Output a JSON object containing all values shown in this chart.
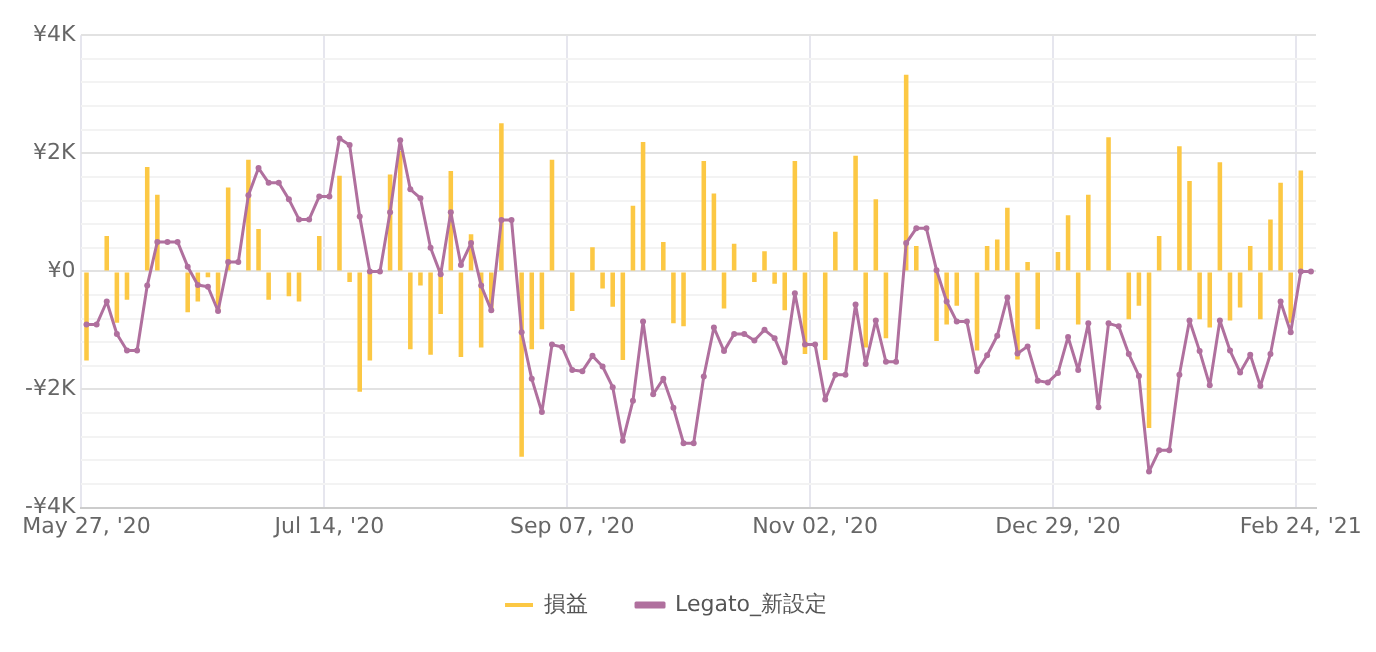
{
  "chart_data": {
    "type": "bar",
    "categories": [
      "May 27, '20",
      null,
      null,
      null,
      null,
      null,
      null,
      null,
      null,
      null,
      null,
      null,
      null,
      null,
      null,
      null,
      null,
      null,
      null,
      null,
      null,
      null,
      null,
      null,
      "Jul 14, '20",
      null,
      null,
      null,
      null,
      null,
      null,
      null,
      null,
      null,
      null,
      null,
      null,
      null,
      null,
      null,
      null,
      null,
      null,
      null,
      null,
      null,
      null,
      null,
      "Sep 07, '20",
      null,
      null,
      null,
      null,
      null,
      null,
      null,
      null,
      null,
      null,
      null,
      null,
      null,
      null,
      null,
      null,
      null,
      null,
      null,
      null,
      null,
      null,
      null,
      "Nov 02, '20",
      null,
      null,
      null,
      null,
      null,
      null,
      null,
      null,
      null,
      null,
      null,
      null,
      null,
      null,
      null,
      null,
      null,
      null,
      null,
      null,
      null,
      null,
      null,
      "Dec 29, '20",
      null,
      null,
      null,
      null,
      null,
      null,
      null,
      null,
      null,
      null,
      null,
      null,
      null,
      null,
      null,
      null,
      null,
      null,
      null,
      null,
      null,
      null,
      null,
      "Feb 24, '21",
      null
    ],
    "series": [
      {
        "name": "損益",
        "color": "#fcc844",
        "values": [
          -1510,
          null,
          600,
          -870,
          -480,
          null,
          1770,
          1300,
          null,
          null,
          -690,
          -510,
          -100,
          -690,
          1420,
          null,
          1890,
          720,
          -480,
          null,
          -420,
          -510,
          null,
          600,
          null,
          1620,
          -180,
          -2040,
          -1510,
          null,
          1640,
          2040,
          -1320,
          -240,
          -1410,
          -720,
          1700,
          -1450,
          630,
          -1290,
          -690,
          2510,
          null,
          -3140,
          -1320,
          -980,
          1890,
          null,
          -670,
          null,
          410,
          -290,
          -600,
          -1500,
          1110,
          2190,
          null,
          500,
          -880,
          -930,
          null,
          1870,
          1320,
          -630,
          470,
          null,
          -180,
          340,
          -210,
          -660,
          1870,
          -1400,
          null,
          -1500,
          670,
          null,
          1960,
          -1290,
          1220,
          -1130,
          null,
          3330,
          430,
          null,
          -1180,
          -900,
          -580,
          null,
          -1340,
          430,
          540,
          1080,
          -1490,
          160,
          -980,
          null,
          330,
          950,
          -900,
          1300,
          null,
          2270,
          null,
          -810,
          -580,
          -2650,
          600,
          null,
          2120,
          1530,
          -810,
          -950,
          1850,
          -830,
          -610,
          430,
          -810,
          880,
          1500,
          -870,
          1710,
          null
        ]
      },
      {
        "name": "Legato_新設定",
        "type": "line",
        "color": "#b0709e",
        "values": [
          -900,
          -900,
          -510,
          -1060,
          -1340,
          -1340,
          -240,
          500,
          500,
          500,
          80,
          -230,
          -260,
          -670,
          160,
          160,
          1290,
          1750,
          1500,
          1500,
          1220,
          880,
          880,
          1270,
          1270,
          2250,
          2140,
          930,
          0,
          0,
          1000,
          2220,
          1390,
          1240,
          400,
          -50,
          1000,
          110,
          480,
          -240,
          -660,
          870,
          870,
          -1030,
          -1820,
          -2380,
          -1240,
          -1280,
          -1670,
          -1690,
          -1430,
          -1610,
          -1960,
          -2870,
          -2190,
          -850,
          -2080,
          -1820,
          -2310,
          -2910,
          -2910,
          -1780,
          -950,
          -1350,
          -1060,
          -1060,
          -1170,
          -990,
          -1130,
          -1540,
          -370,
          -1240,
          -1240,
          -2170,
          -1750,
          -1750,
          -560,
          -1570,
          -830,
          -1530,
          -1530,
          480,
          730,
          730,
          20,
          -510,
          -850,
          -850,
          -1690,
          -1420,
          -1090,
          -440,
          -1390,
          -1270,
          -1850,
          -1880,
          -1720,
          -1110,
          -1670,
          -880,
          -2300,
          -880,
          -930,
          -1400,
          -1770,
          -3390,
          -3030,
          -3030,
          -1750,
          -830,
          -1350,
          -1930,
          -830,
          -1340,
          -1710,
          -1410,
          -1940,
          -1400,
          -510,
          -1030,
          0,
          0
        ]
      }
    ],
    "ylim": [
      -4000,
      4000
    ],
    "yticks": [
      {
        "value": -4000,
        "label": "-¥4K"
      },
      {
        "value": -3600,
        "label": null
      },
      {
        "value": -3200,
        "label": null
      },
      {
        "value": -2800,
        "label": null
      },
      {
        "value": -2400,
        "label": null
      },
      {
        "value": -2000,
        "label": "-¥2K"
      },
      {
        "value": -1600,
        "label": null
      },
      {
        "value": -1200,
        "label": null
      },
      {
        "value": -800,
        "label": null
      },
      {
        "value": -400,
        "label": null
      },
      {
        "value": 0,
        "label": "¥0"
      },
      {
        "value": 400,
        "label": null
      },
      {
        "value": 800,
        "label": null
      },
      {
        "value": 1200,
        "label": null
      },
      {
        "value": 1600,
        "label": null
      },
      {
        "value": 2000,
        "label": "¥2K"
      },
      {
        "value": 2400,
        "label": null
      },
      {
        "value": 2800,
        "label": null
      },
      {
        "value": 3200,
        "label": null
      },
      {
        "value": 3600,
        "label": null
      },
      {
        "value": 4000,
        "label": "¥4K"
      }
    ],
    "grid": true,
    "legend": "bottom",
    "marker": "circle",
    "line_style": "solid"
  }
}
